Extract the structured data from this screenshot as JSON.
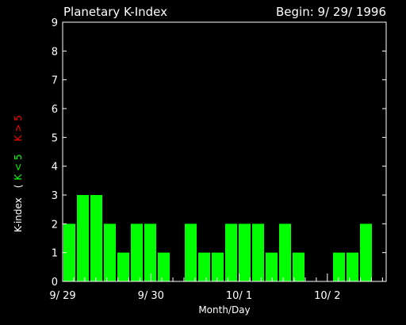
{
  "chart_data": {
    "type": "bar",
    "title": "Planetary K-Index",
    "subtitle": "Begin: 9/ 29/ 1996",
    "xlabel": "Month/Day",
    "ylabel": {
      "prefix": "K-index",
      "open": "(",
      "green": "K < 5",
      "red": "K > 5"
    },
    "ylim": [
      0,
      9
    ],
    "yticks": [
      "0",
      "1",
      "2",
      "3",
      "4",
      "5",
      "6",
      "7",
      "8",
      "9"
    ],
    "xticks": [
      "9/ 29",
      "9/ 30",
      "10/ 1",
      "10/ 2"
    ],
    "values": [
      2,
      3,
      3,
      2,
      1,
      2,
      2,
      1,
      0,
      2,
      1,
      1,
      2,
      2,
      2,
      1,
      2,
      1,
      0,
      0,
      1,
      1,
      2,
      0
    ],
    "bar_color": "#00ff00",
    "axis_color": "#ffffff",
    "low_color": "#00ff00",
    "high_color": "#ff0000"
  }
}
